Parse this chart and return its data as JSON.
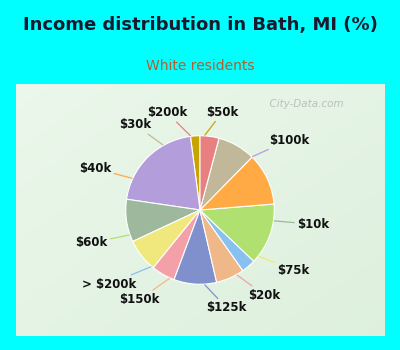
{
  "title": "Income distribution in Bath, MI (%)",
  "subtitle": "White residents",
  "title_color": "#1a1a2e",
  "subtitle_color": "#b06030",
  "bg_cyan": "#00ffff",
  "bg_chart_left": "#e0f5ee",
  "bg_chart_right": "#d0eee8",
  "watermark": "City-Data.com",
  "labels": [
    "$50k",
    "$100k",
    "$10k",
    "$75k",
    "$20k",
    "$125k",
    "$150k",
    "> $200k",
    "$60k",
    "$40k",
    "$30k",
    "$200k"
  ],
  "values": [
    2,
    20,
    9,
    7,
    5,
    9,
    6,
    3,
    13,
    11,
    8,
    4
  ],
  "colors": [
    "#c8a400",
    "#b39ddb",
    "#9db89d",
    "#f0e87c",
    "#f4a0a8",
    "#8090cc",
    "#f0b888",
    "#88c0f0",
    "#b0e070",
    "#ffaa44",
    "#c0b898",
    "#e88080"
  ],
  "label_fontsize": 8.5,
  "title_fontsize": 13,
  "subtitle_fontsize": 10,
  "startangle": 90
}
